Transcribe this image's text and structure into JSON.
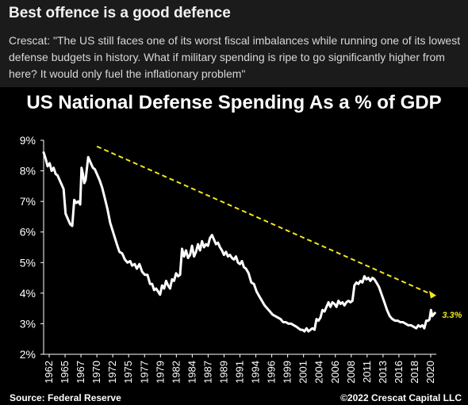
{
  "post": {
    "headline": "Best offence is a good defence",
    "quote": "Crescat: \"The US still faces one of its worst fiscal imbalances while running one of its lowest defense budgets in history. What if military spending is ripe to go significantly higher from here? It would only fuel the inflationary problem\""
  },
  "chart_data": {
    "type": "line",
    "title": "US National Defense Spending As a % of GDP",
    "xlabel": "",
    "ylabel": "",
    "xlim": [
      1962,
      2021
    ],
    "ylim": [
      2,
      9
    ],
    "yticks": [
      "2%",
      "3%",
      "4%",
      "5%",
      "6%",
      "7%",
      "8%",
      "9%"
    ],
    "xticks": [
      "1962",
      "1965",
      "1967",
      "1970",
      "1972",
      "1975",
      "1977",
      "1979",
      "1982",
      "1984",
      "1987",
      "1989",
      "1991",
      "1994",
      "1996",
      "1999",
      "2001",
      "2004",
      "2006",
      "2008",
      "2011",
      "2013",
      "2016",
      "2018",
      "2020"
    ],
    "grid": false,
    "line_color": "#ffffff",
    "trend_color": "#f0e61e",
    "series": [
      {
        "x": [
          1962.0,
          1962.3,
          1962.6,
          1962.9,
          1963.2,
          1963.5,
          1963.8,
          1964.1,
          1964.4,
          1964.7,
          1965.0,
          1965.3,
          1965.7,
          1966.0,
          1966.3,
          1966.6,
          1966.9,
          1967.2,
          1967.5,
          1967.7,
          1967.9,
          1968.1,
          1968.3,
          1968.7,
          1969.0,
          1969.4,
          1969.7,
          1970.0,
          1970.4,
          1970.8,
          1971.2,
          1971.6,
          1972.0,
          1972.5,
          1973.0,
          1973.4,
          1973.8,
          1974.2,
          1974.6,
          1975.0,
          1975.3,
          1975.7,
          1976.0,
          1976.4,
          1976.8,
          1977.2,
          1977.6,
          1978.0,
          1978.3,
          1978.6,
          1978.9,
          1979.2,
          1979.5,
          1979.8,
          1980.1,
          1980.4,
          1980.7,
          1981.0,
          1981.3,
          1981.6,
          1981.9,
          1982.2,
          1982.5,
          1982.8,
          1983.1,
          1983.4,
          1983.7,
          1984.0,
          1984.3,
          1984.6,
          1984.9,
          1985.2,
          1985.5,
          1985.8,
          1986.1,
          1986.4,
          1986.7,
          1987.0,
          1987.3,
          1987.6,
          1987.9,
          1988.2,
          1988.5,
          1988.8,
          1989.1,
          1989.4,
          1989.7,
          1990.0,
          1990.3,
          1990.6,
          1990.9,
          1991.2,
          1991.5,
          1991.8,
          1992.1,
          1992.4,
          1992.8,
          1993.2,
          1993.6,
          1994.0,
          1994.4,
          1994.8,
          1995.2,
          1995.6,
          1996.0,
          1996.4,
          1996.8,
          1997.2,
          1997.6,
          1998.0,
          1998.4,
          1998.8,
          1999.2,
          1999.6,
          2000.0,
          2000.3,
          2000.6,
          2000.9,
          2001.2,
          2001.5,
          2001.8,
          2002.1,
          2002.4,
          2002.7,
          2003.0,
          2003.3,
          2003.6,
          2003.9,
          2004.2,
          2004.5,
          2004.8,
          2005.1,
          2005.4,
          2005.7,
          2006.0,
          2006.3,
          2006.6,
          2006.9,
          2007.2,
          2007.5,
          2007.8,
          2008.1,
          2008.4,
          2008.7,
          2009.0,
          2009.3,
          2009.6,
          2009.9,
          2010.2,
          2010.5,
          2010.8,
          2011.1,
          2011.4,
          2011.7,
          2012.0,
          2012.4,
          2012.8,
          2013.2,
          2013.6,
          2014.0,
          2014.4,
          2014.8,
          2015.2,
          2015.6,
          2016.0,
          2016.4,
          2016.8,
          2017.2,
          2017.6,
          2018.0,
          2018.3,
          2018.6,
          2018.9,
          2019.2,
          2019.5,
          2019.8,
          2020.0,
          2020.2,
          2020.4,
          2020.6,
          2020.8
        ],
        "values": [
          8.6,
          8.4,
          8.15,
          8.25,
          8.0,
          8.1,
          7.9,
          7.85,
          7.7,
          7.55,
          7.4,
          6.6,
          6.4,
          6.25,
          6.2,
          7.05,
          6.95,
          7.0,
          6.9,
          8.1,
          7.9,
          7.6,
          7.7,
          8.45,
          8.3,
          8.1,
          8.05,
          7.9,
          7.7,
          7.45,
          7.1,
          6.75,
          6.3,
          5.95,
          5.6,
          5.35,
          5.3,
          5.1,
          5.0,
          5.05,
          4.9,
          4.95,
          4.8,
          4.95,
          4.7,
          4.6,
          4.6,
          4.3,
          4.3,
          4.1,
          4.15,
          4.05,
          3.95,
          4.25,
          4.15,
          4.4,
          4.25,
          4.15,
          4.45,
          4.4,
          4.65,
          4.55,
          4.6,
          5.45,
          5.2,
          5.4,
          5.15,
          5.25,
          5.55,
          5.2,
          5.35,
          5.6,
          5.4,
          5.7,
          5.5,
          5.6,
          5.55,
          5.8,
          5.9,
          5.75,
          5.6,
          5.65,
          5.5,
          5.4,
          5.25,
          5.35,
          5.2,
          5.25,
          5.15,
          5.1,
          5.2,
          5.0,
          4.95,
          5.05,
          4.85,
          4.8,
          4.65,
          4.35,
          4.3,
          4.05,
          3.9,
          3.75,
          3.6,
          3.5,
          3.4,
          3.3,
          3.25,
          3.2,
          3.15,
          3.05,
          3.05,
          3.0,
          3.0,
          2.95,
          2.9,
          2.85,
          2.8,
          2.8,
          2.75,
          2.85,
          2.75,
          2.8,
          2.85,
          2.8,
          3.15,
          3.1,
          3.2,
          3.45,
          3.4,
          3.55,
          3.7,
          3.55,
          3.7,
          3.65,
          3.55,
          3.75,
          3.65,
          3.7,
          3.6,
          3.7,
          3.75,
          3.7,
          3.75,
          4.25,
          4.35,
          4.3,
          4.4,
          4.35,
          4.55,
          4.45,
          4.5,
          4.4,
          4.5,
          4.45,
          4.35,
          4.2,
          3.95,
          3.7,
          3.45,
          3.25,
          3.15,
          3.1,
          3.1,
          3.05,
          3.05,
          3.0,
          2.95,
          2.95,
          2.9,
          2.85,
          2.95,
          2.9,
          2.95,
          2.85,
          3.1,
          3.1,
          3.15,
          3.45,
          3.25,
          3.3,
          3.35
        ]
      }
    ],
    "trend": {
      "x": [
        1970,
        2020.4
      ],
      "values": [
        8.8,
        3.95
      ]
    },
    "annotation": {
      "text": "3.3%",
      "x": 2020.8,
      "value": 3.3,
      "color": "#f0e61e"
    },
    "source": "Source: Federal Reserve",
    "credit": "©2022 Crescat Capital LLC"
  }
}
